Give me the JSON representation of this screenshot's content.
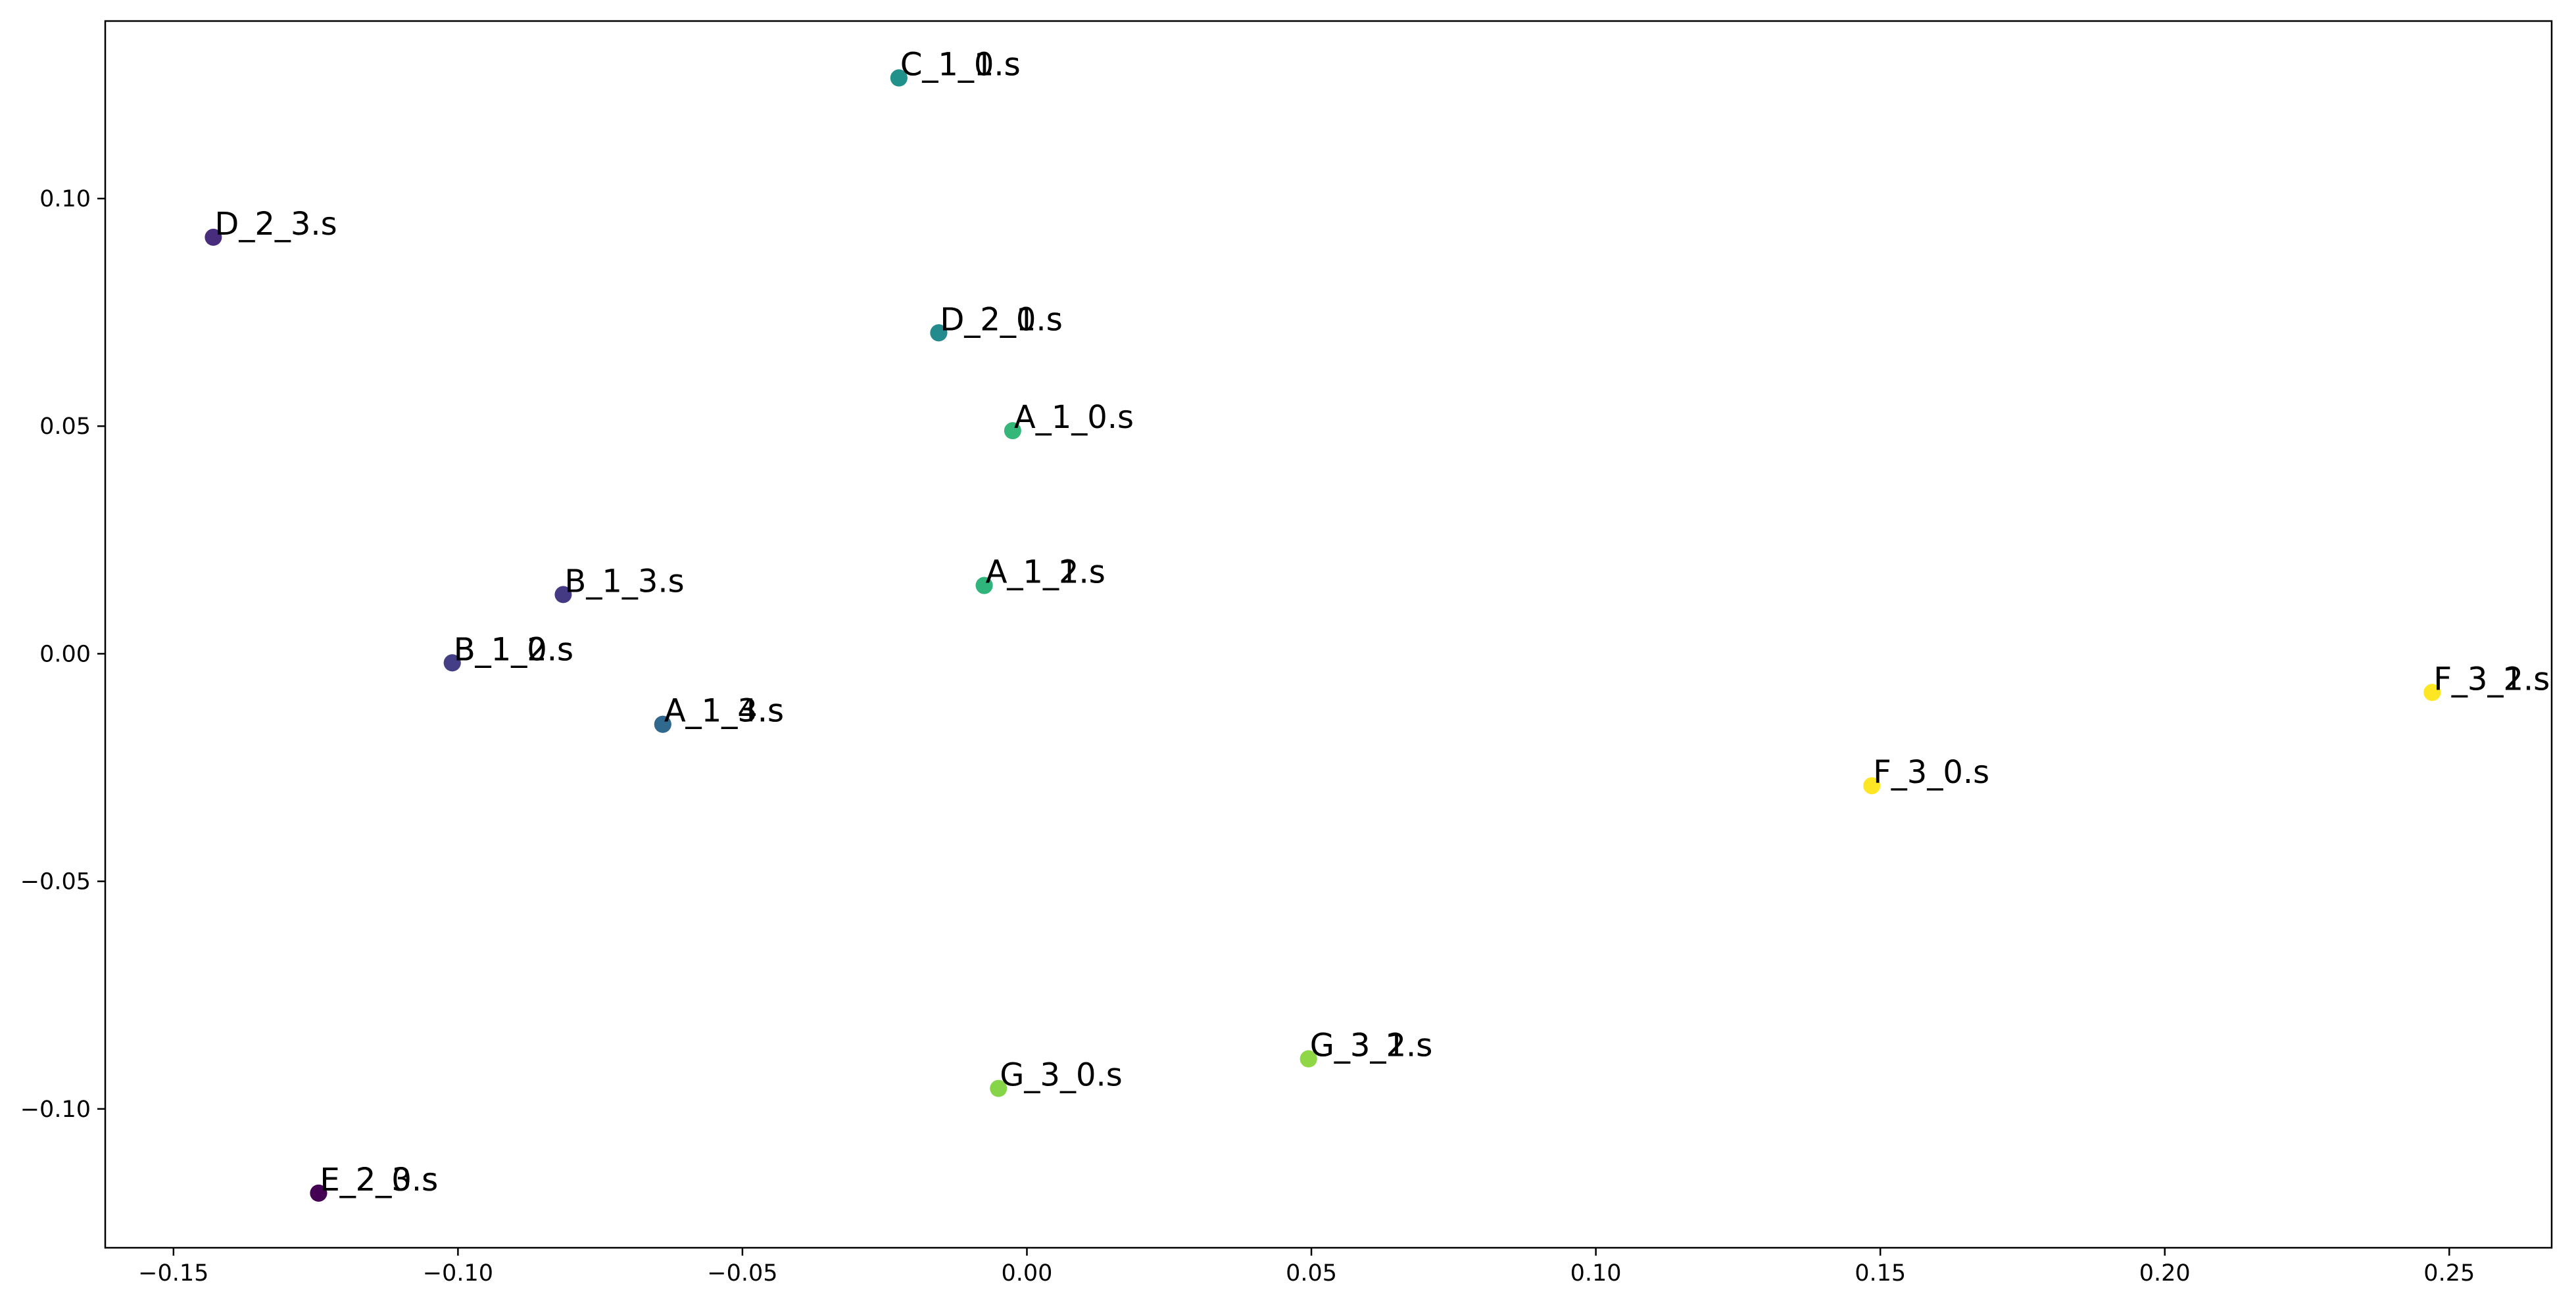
{
  "chart_data": {
    "type": "scatter",
    "title": "",
    "xlabel": "",
    "ylabel": "",
    "xlim": [
      -0.162,
      0.268
    ],
    "ylim": [
      -0.1305,
      0.139
    ],
    "grid": false,
    "legend": "none",
    "x_ticks": [
      -0.15,
      -0.1,
      -0.05,
      0.0,
      0.05,
      0.1,
      0.15,
      0.2,
      0.25
    ],
    "x_tick_labels": [
      "−0.15",
      "−0.10",
      "−0.05",
      "0.00",
      "0.05",
      "0.10",
      "0.15",
      "0.20",
      "0.25"
    ],
    "y_ticks": [
      -0.1,
      -0.05,
      0.0,
      0.05,
      0.1
    ],
    "y_tick_labels": [
      "−0.10",
      "−0.05",
      "0.00",
      "0.05",
      "0.10"
    ],
    "colormap": "viridis",
    "points": [
      {
        "label": "C_1_0.s",
        "x": -0.0225,
        "y": 0.1265,
        "color": "#21918c"
      },
      {
        "label": "C_1_1.s",
        "x": -0.0225,
        "y": 0.1265,
        "color": "#21918c"
      },
      {
        "label": "D_2_3.s",
        "x": -0.143,
        "y": 0.0915,
        "color": "#472d7b"
      },
      {
        "label": "D_2_0.s",
        "x": -0.0155,
        "y": 0.0705,
        "color": "#238a8d"
      },
      {
        "label": "D_2_1.s",
        "x": -0.0155,
        "y": 0.0705,
        "color": "#238a8d"
      },
      {
        "label": "A_1_0.s",
        "x": -0.0025,
        "y": 0.049,
        "color": "#35b779"
      },
      {
        "label": "A_1_1.s",
        "x": -0.0075,
        "y": 0.015,
        "color": "#2fb47c"
      },
      {
        "label": "A_1_2.s",
        "x": -0.0075,
        "y": 0.015,
        "color": "#2fb47c"
      },
      {
        "label": "B_1_3.s",
        "x": -0.0815,
        "y": 0.013,
        "color": "#443983"
      },
      {
        "label": "B_1_0.s",
        "x": -0.101,
        "y": -0.002,
        "color": "#433e85"
      },
      {
        "label": "B_1_2.s",
        "x": -0.101,
        "y": -0.002,
        "color": "#433e85"
      },
      {
        "label": "A_1_3.s",
        "x": -0.064,
        "y": -0.0155,
        "color": "#31688e"
      },
      {
        "label": "A_1_4.s",
        "x": -0.064,
        "y": -0.0155,
        "color": "#31688e"
      },
      {
        "label": "F_3_1.s",
        "x": 0.247,
        "y": -0.0085,
        "color": "#fde725"
      },
      {
        "label": "F_3_2.s",
        "x": 0.247,
        "y": -0.0085,
        "color": "#fde725"
      },
      {
        "label": "F_3_0.s",
        "x": 0.1485,
        "y": -0.029,
        "color": "#fde725"
      },
      {
        "label": "G_3_2.s",
        "x": 0.0495,
        "y": -0.089,
        "color": "#8fd744"
      },
      {
        "label": "G_3_1.s",
        "x": 0.0495,
        "y": -0.089,
        "color": "#8fd744"
      },
      {
        "label": "G_3_0.s",
        "x": -0.005,
        "y": -0.0955,
        "color": "#86d549"
      },
      {
        "label": "E_2_0.s",
        "x": -0.1245,
        "y": -0.1185,
        "color": "#440154"
      },
      {
        "label": "E_2_3.s",
        "x": -0.1245,
        "y": -0.1185,
        "color": "#440154"
      }
    ]
  }
}
